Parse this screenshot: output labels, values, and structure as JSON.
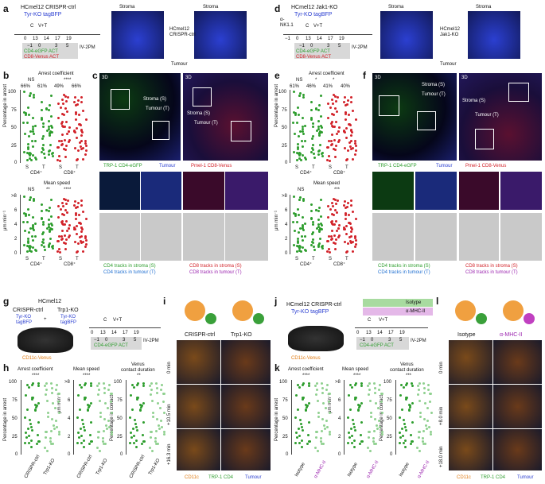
{
  "panels": [
    "a",
    "b",
    "c",
    "d",
    "e",
    "f",
    "g",
    "h",
    "i",
    "j",
    "k",
    "l"
  ],
  "a": {
    "cell_line": "HCmel12 CRISPR-ctrl",
    "tagbfp": "Tyr-KO tagBFP",
    "timeline_top": [
      "0",
      "13",
      "14",
      "17",
      "19"
    ],
    "timeline_bottom": [
      "−1",
      "0",
      "3",
      "5"
    ],
    "treatments": [
      "C",
      "V+T"
    ],
    "act1": "CD4-eGFP ACT",
    "act2": "CD8-Venus ACT",
    "iv": "IV-2PM",
    "stroma": "Stroma",
    "tumour": "Tumour",
    "tumour_label": "HCmel12\nCRISPR-ctrl"
  },
  "d": {
    "cell_line": "HCmel12 Jak1-KO",
    "tagbfp": "Tyr-KO tagBFP",
    "nk": "α-\nNK1.1",
    "timeline_top": [
      "−1",
      "0",
      "13",
      "14",
      "17",
      "19"
    ],
    "timeline_bottom": [
      "−1",
      "0",
      "3",
      "5"
    ],
    "treatments": [
      "C",
      "V+T"
    ],
    "act1": "CD4-eGFP ACT",
    "act2": "CD8-Venus ACT",
    "iv": "IV-2PM",
    "stroma": "Stroma",
    "tumour": "Tumour",
    "tumour_label": "HCmel12\nJak1-KO"
  },
  "b": {
    "title": "Arrest coefficient",
    "ylabel": "Percentage in arrest",
    "title2": "Mean speed",
    "ylabel2": "μm min⁻¹",
    "percents": [
      "66%",
      "61%",
      "49%",
      "66%"
    ],
    "sig_top": [
      "NS",
      "****"
    ],
    "sig_bottom": [
      "NS",
      "**",
      "****"
    ],
    "cats": [
      "S",
      "T",
      "S",
      "T"
    ],
    "groups": [
      "CD4⁺",
      "CD8⁺"
    ],
    "yticks": [
      "100",
      "75",
      "50",
      "25",
      "0"
    ],
    "yticks2": [
      ">8",
      "6",
      "4",
      "2",
      "0"
    ]
  },
  "e": {
    "title": "Arrest coefficient",
    "ylabel": "Percentage in arrest",
    "title2": "Mean speed",
    "ylabel2": "μm min⁻¹",
    "percents": [
      "61%",
      "46%",
      "41%",
      "40%"
    ],
    "sig_top": [
      "NS",
      "*",
      "*"
    ],
    "sig_bottom": [
      "NS",
      "***"
    ],
    "cats": [
      "S",
      "T",
      "S",
      "T"
    ],
    "groups": [
      "CD4⁺",
      "CD8⁺"
    ],
    "yticks": [
      "100",
      "75",
      "50",
      "25",
      "0"
    ],
    "yticks2": [
      ">8",
      "6",
      "4",
      "2",
      "0"
    ]
  },
  "c": {
    "tag_3d": "3D",
    "stroma": "Stroma (S)",
    "tumour": "Tumour (T)",
    "legend1": "TRP-1 CD4-eGFP",
    "legend2": "Tumour",
    "legend3": "Pmel-1 CD8-Venus",
    "tracks": [
      "CD4 tracks in stroma (S)",
      "CD4 tracks in tumour (T)",
      "CD8 tracks in stroma (S)",
      "CD8 tracks in tumour (T)"
    ]
  },
  "f": {
    "tag_3d": "3D",
    "stroma": "Stroma (S)",
    "tumour": "Tumour (T)",
    "legend1": "TRP-1 CD4-eGFP",
    "legend2": "Tumour",
    "legend3": "Pmel-1 CD8-Venus",
    "tracks": [
      "CD4 tracks in stroma (S)",
      "CD4 tracks in tumour (T)",
      "CD8 tracks in stroma (S)",
      "CD8 tracks in tumour (T)"
    ]
  },
  "g": {
    "top": "HCmel12",
    "left": "CRISPR-ctrl",
    "right": "Trp1-KO",
    "tyr": "Tyr-KO",
    "tag": "tagBFP",
    "plus": "+",
    "mouse": "CD11c-Venus",
    "timeline_top": [
      "0",
      "13",
      "14",
      "17",
      "19"
    ],
    "timeline_bottom": [
      "−1",
      "0",
      "3",
      "5"
    ],
    "treatments": [
      "C",
      "V+T"
    ],
    "act": "CD4-eGFP ACT",
    "iv": "IV-2PM"
  },
  "h": {
    "title1": "Arrest coefficient",
    "title2": "Mean speed",
    "title3": "Venus\ncontact duration",
    "ylabel1": "Percentage in arrest",
    "ylabel2": "μm min⁻¹",
    "ylabel3": "Percentage in contact",
    "sig": [
      "****",
      "****",
      "**"
    ],
    "cats": [
      "CRISPR-ctrl",
      "Trp1-KO"
    ],
    "yticks": [
      "100",
      "75",
      "50",
      "25",
      "0"
    ],
    "yticks2": [
      ">8",
      "6",
      "4",
      "2",
      "0"
    ]
  },
  "i": {
    "col1": "CRISPR-ctrl",
    "col2": "Trp1-KO",
    "times": [
      "0 min",
      "+10.5 min",
      "+16.3 min"
    ],
    "legend": [
      "CD11c",
      "TRP-1 CD4",
      "Tumour"
    ]
  },
  "j": {
    "cell_line": "HCmel12 CRISPR-ctrl",
    "tagbfp": "Tyr-KO tagBFP",
    "iso": "Isotype",
    "mhc": "α-MHC-II",
    "mouse": "CD11c-Venus",
    "timeline_top": [
      "0",
      "13",
      "14",
      "17",
      "19"
    ],
    "timeline_bottom": [
      "−1",
      "0",
      "3",
      "5"
    ],
    "treatments": [
      "C",
      "V+T"
    ],
    "act": "CD4-eGFP ACT",
    "iv": "IV-2PM"
  },
  "k": {
    "title1": "Arrest coefficient",
    "title2": "Mean speed",
    "title3": "Venus\ncontact duration",
    "ylabel1": "Percentage in arrest",
    "ylabel2": "μm min⁻¹",
    "ylabel3": "Percentage in contact",
    "sig": [
      "****",
      "****",
      "***"
    ],
    "cats": [
      "Isotype",
      "α-MHC-II"
    ],
    "yticks": [
      "100",
      "75",
      "50",
      "25",
      "0"
    ],
    "yticks2": [
      ">8",
      "6",
      "4",
      "2",
      "0"
    ]
  },
  "l": {
    "col1": "Isotype",
    "col2": "α-MHC-II",
    "times": [
      "0 min",
      "+8.0 min",
      "+18.0 min"
    ],
    "legend": [
      "CD11c",
      "TRP-1 CD4",
      "Tumour"
    ]
  },
  "colors": {
    "green": "#2e9e2e",
    "red": "#d2232a",
    "blue": "#2b3fd1",
    "purple": "#9c27b0",
    "orange": "#e07a10",
    "act_bg": "#d8d8d8"
  }
}
